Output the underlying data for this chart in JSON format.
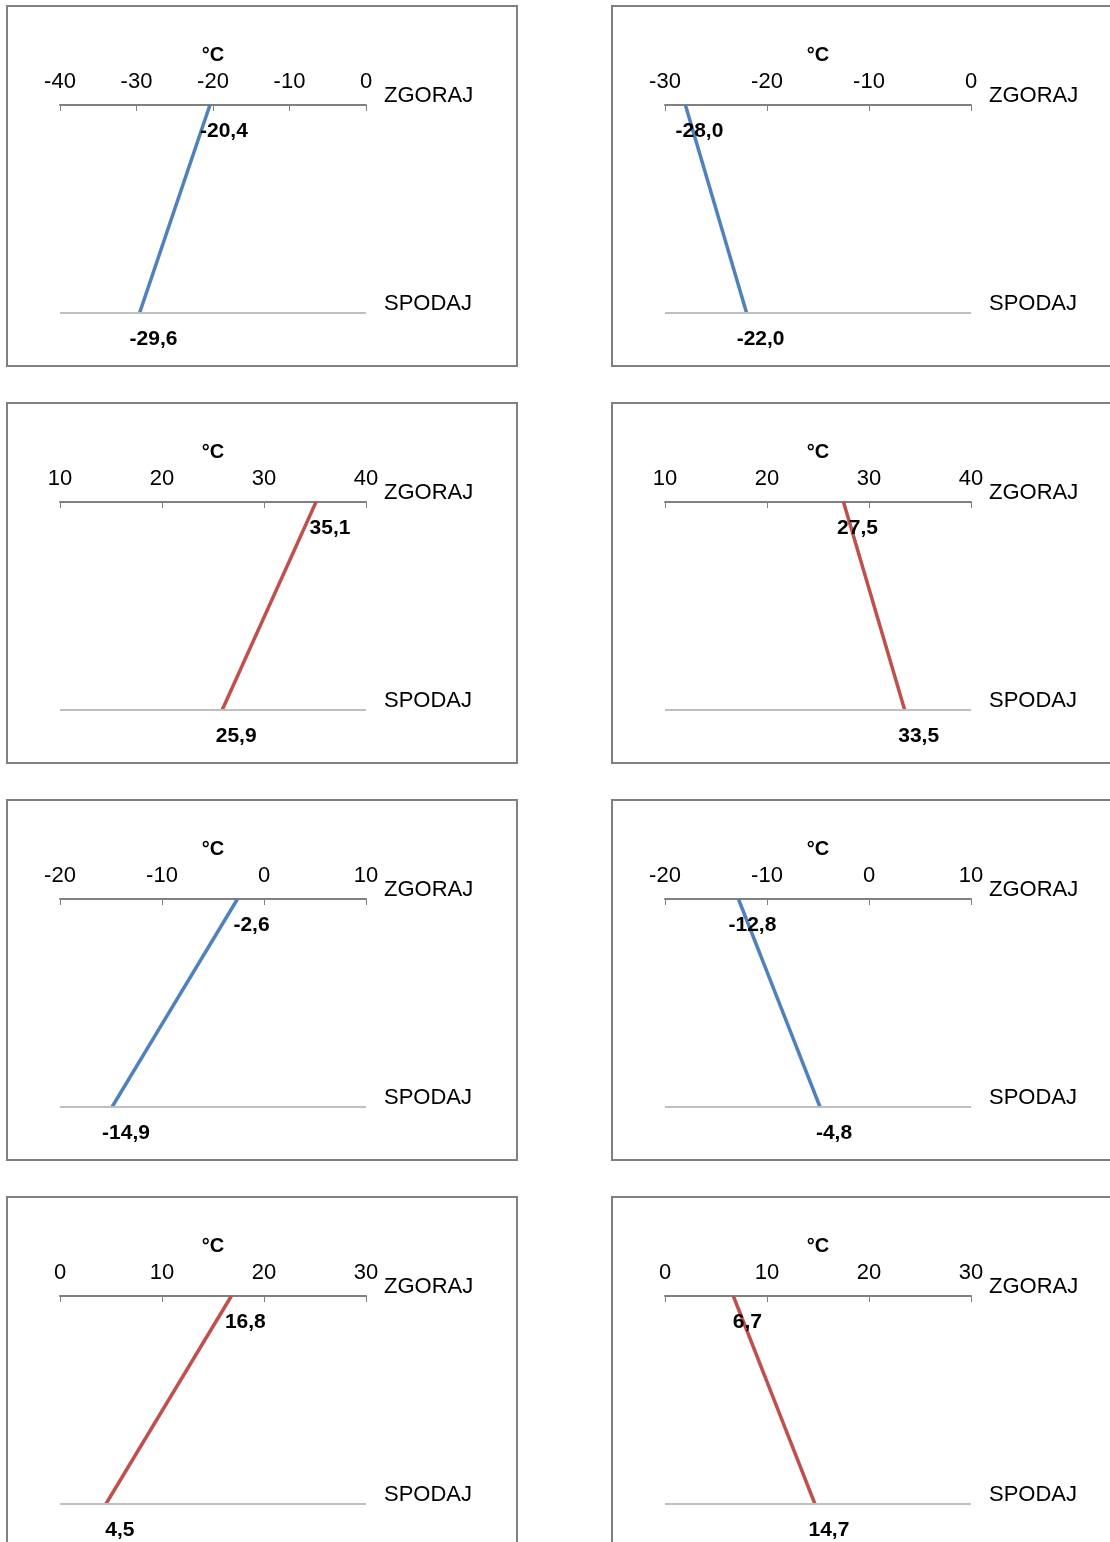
{
  "chart_data": [
    {
      "type": "line",
      "orientation": "horizontal",
      "xlabel": "°C",
      "categories": [
        "ZGORAJ",
        "SPODAJ"
      ],
      "xlim": [
        -40,
        0
      ],
      "xticks": [
        -40,
        -30,
        -20,
        -10,
        0
      ],
      "marker": "none",
      "ref_lines": [
        {
          "axis": "y",
          "value": "SPODAJ",
          "color": "#bfbfbf"
        }
      ],
      "series": [
        {
          "color": "#4f81bd",
          "values": [
            -20.4,
            -29.6
          ],
          "value_labels": [
            "-20,4",
            "-29,6"
          ]
        }
      ]
    },
    {
      "type": "line",
      "orientation": "horizontal",
      "xlabel": "°C",
      "categories": [
        "ZGORAJ",
        "SPODAJ"
      ],
      "xlim": [
        -30,
        0
      ],
      "xticks": [
        -30,
        -20,
        -10,
        0
      ],
      "marker": "none",
      "ref_lines": [
        {
          "axis": "y",
          "value": "SPODAJ",
          "color": "#bfbfbf"
        }
      ],
      "series": [
        {
          "color": "#4f81bd",
          "values": [
            -28.0,
            -22.0
          ],
          "value_labels": [
            "-28,0",
            "-22,0"
          ]
        }
      ]
    },
    {
      "type": "line",
      "orientation": "horizontal",
      "xlabel": "°C",
      "categories": [
        "ZGORAJ",
        "SPODAJ"
      ],
      "xlim": [
        10,
        40
      ],
      "xticks": [
        10,
        20,
        30,
        40
      ],
      "marker": "none",
      "ref_lines": [
        {
          "axis": "y",
          "value": "SPODAJ",
          "color": "#bfbfbf"
        }
      ],
      "series": [
        {
          "color": "#c0504d",
          "values": [
            35.1,
            25.9
          ],
          "value_labels": [
            "35,1",
            "25,9"
          ]
        }
      ]
    },
    {
      "type": "line",
      "orientation": "horizontal",
      "xlabel": "°C",
      "categories": [
        "ZGORAJ",
        "SPODAJ"
      ],
      "xlim": [
        10,
        40
      ],
      "xticks": [
        10,
        20,
        30,
        40
      ],
      "marker": "none",
      "ref_lines": [
        {
          "axis": "y",
          "value": "SPODAJ",
          "color": "#bfbfbf"
        }
      ],
      "series": [
        {
          "color": "#c0504d",
          "values": [
            27.5,
            33.5
          ],
          "value_labels": [
            "27,5",
            "33,5"
          ]
        }
      ]
    },
    {
      "type": "line",
      "orientation": "horizontal",
      "xlabel": "°C",
      "categories": [
        "ZGORAJ",
        "SPODAJ"
      ],
      "xlim": [
        -20,
        10
      ],
      "xticks": [
        -20,
        -10,
        0,
        10
      ],
      "marker": "none",
      "ref_lines": [
        {
          "axis": "y",
          "value": "SPODAJ",
          "color": "#bfbfbf"
        }
      ],
      "series": [
        {
          "color": "#4f81bd",
          "values": [
            -2.6,
            -14.9
          ],
          "value_labels": [
            "-2,6",
            "-14,9"
          ]
        }
      ]
    },
    {
      "type": "line",
      "orientation": "horizontal",
      "xlabel": "°C",
      "categories": [
        "ZGORAJ",
        "SPODAJ"
      ],
      "xlim": [
        -20,
        10
      ],
      "xticks": [
        -20,
        -10,
        0,
        10
      ],
      "marker": "none",
      "ref_lines": [
        {
          "axis": "y",
          "value": "SPODAJ",
          "color": "#bfbfbf"
        }
      ],
      "series": [
        {
          "color": "#4f81bd",
          "values": [
            -12.8,
            -4.8
          ],
          "value_labels": [
            "-12,8",
            "-4,8"
          ]
        }
      ]
    },
    {
      "type": "line",
      "orientation": "horizontal",
      "xlabel": "°C",
      "categories": [
        "ZGORAJ",
        "SPODAJ"
      ],
      "xlim": [
        0,
        30
      ],
      "xticks": [
        0,
        10,
        20,
        30
      ],
      "marker": "none",
      "ref_lines": [
        {
          "axis": "y",
          "value": "SPODAJ",
          "color": "#bfbfbf"
        }
      ],
      "series": [
        {
          "color": "#c0504d",
          "values": [
            16.8,
            4.5
          ],
          "value_labels": [
            "16,8",
            "4,5"
          ]
        }
      ]
    },
    {
      "type": "line",
      "orientation": "horizontal",
      "xlabel": "°C",
      "categories": [
        "ZGORAJ",
        "SPODAJ"
      ],
      "xlim": [
        0,
        30
      ],
      "xticks": [
        0,
        10,
        20,
        30
      ],
      "marker": "none",
      "ref_lines": [
        {
          "axis": "y",
          "value": "SPODAJ",
          "color": "#bfbfbf"
        }
      ],
      "series": [
        {
          "color": "#c0504d",
          "values": [
            6.7,
            14.7
          ],
          "value_labels": [
            "6,7",
            "14,7"
          ]
        }
      ]
    }
  ]
}
